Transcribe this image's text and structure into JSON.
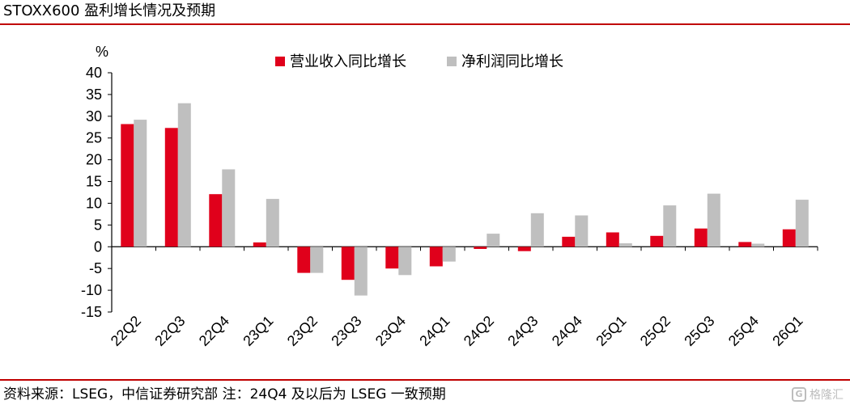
{
  "title": "STOXX600 盈利增长情况及预期",
  "footer": "资料来源：LSEG，中信证券研究部  注：24Q4 及以后为 LSEG 一致预期",
  "watermark": {
    "text": "格隆汇",
    "icon": "watermark-logo-icon"
  },
  "colors": {
    "accent": "#c00000",
    "revenue": "#e0001b",
    "profit": "#bfbfbf"
  },
  "chart_data": {
    "type": "bar",
    "unit_label": "%",
    "categories": [
      "22Q2",
      "22Q3",
      "22Q4",
      "23Q1",
      "23Q2",
      "23Q3",
      "23Q4",
      "24Q1",
      "24Q2",
      "24Q3",
      "24Q4",
      "25Q1",
      "25Q2",
      "25Q3",
      "25Q4",
      "26Q1"
    ],
    "series": [
      {
        "name": "营业收入同比增长",
        "color": "#e0001b",
        "values": [
          28.2,
          27.3,
          12.1,
          1.0,
          -6.0,
          -7.6,
          -5.0,
          -4.5,
          -0.5,
          -1.0,
          2.3,
          3.3,
          2.5,
          4.2,
          1.1,
          4.0
        ]
      },
      {
        "name": "净利润同比增长",
        "color": "#bfbfbf",
        "values": [
          29.2,
          33.0,
          17.8,
          11.0,
          -6.0,
          -11.2,
          -6.5,
          -3.4,
          3.0,
          7.7,
          7.2,
          0.8,
          9.5,
          12.2,
          0.7,
          10.8
        ]
      }
    ],
    "ylim": [
      -15,
      40
    ],
    "yticks": [
      -15,
      -10,
      -5,
      0,
      5,
      10,
      15,
      20,
      25,
      30,
      35,
      40
    ],
    "grid": false,
    "legend_position": "top-center"
  }
}
